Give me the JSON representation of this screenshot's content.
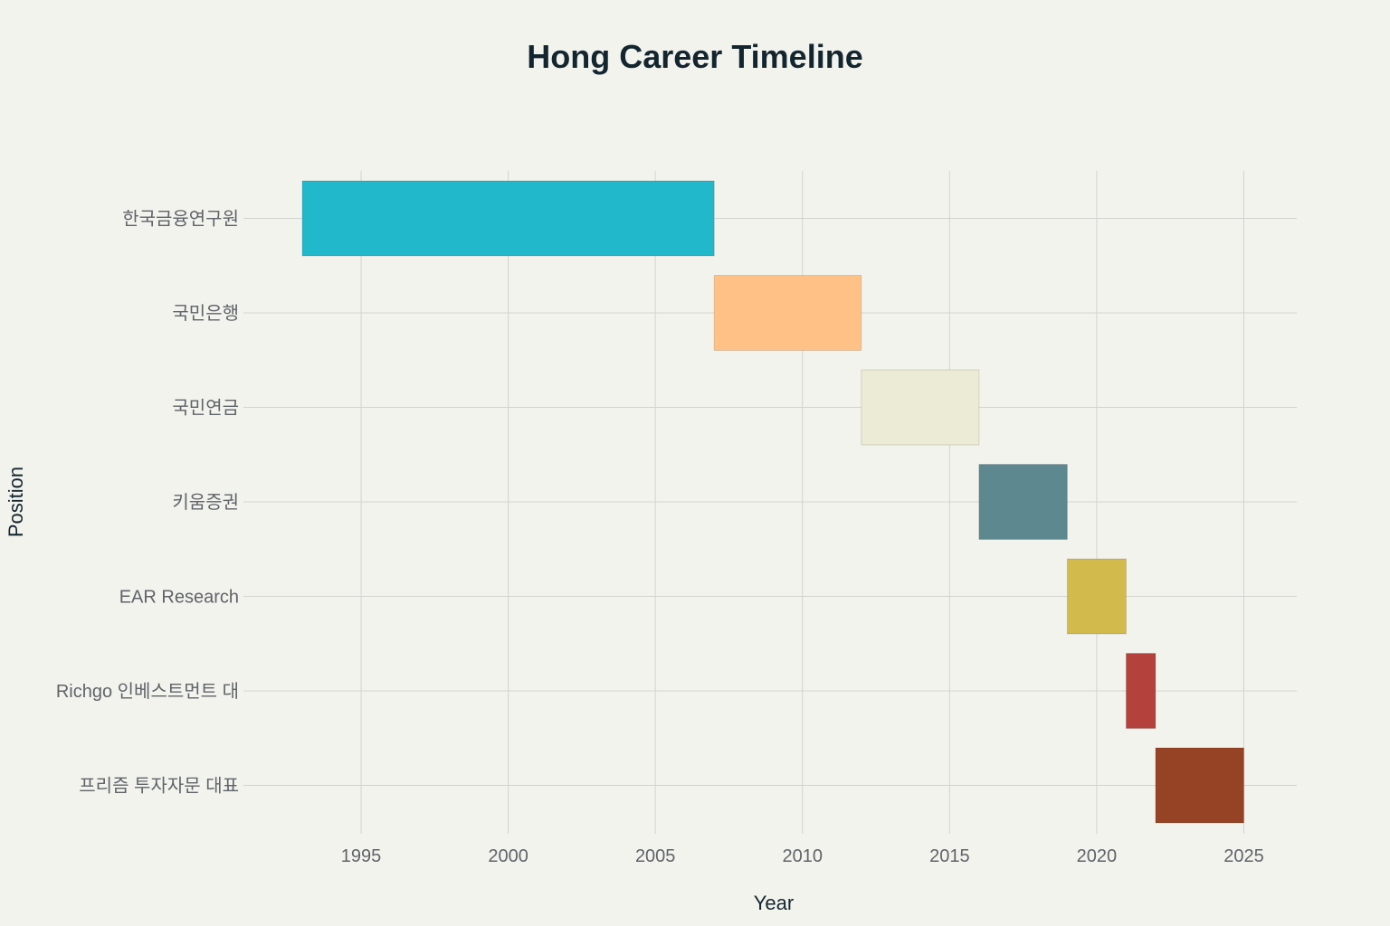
{
  "chart_data": {
    "type": "bar",
    "orientation": "horizontal-timeline",
    "title": "Hong Career Timeline",
    "xlabel": "Year",
    "ylabel": "Position",
    "xlim": [
      1991,
      2026.8
    ],
    "xticks": [
      1995,
      2000,
      2005,
      2010,
      2015,
      2020,
      2025
    ],
    "grid": true,
    "legend": "none",
    "categories": [
      "한국금융연구원",
      "국민은행",
      "국민연금",
      "키움증권",
      "EAR Research",
      "Richgo 인베스트먼트 대",
      "프리즘 투자자문 대표"
    ],
    "bars": [
      {
        "label": "한국금융연구원",
        "start": 1993,
        "end": 2007,
        "color": "#21b8cc"
      },
      {
        "label": "국민은행",
        "start": 2007,
        "end": 2012,
        "color": "#ffc185"
      },
      {
        "label": "국민연금",
        "start": 2012,
        "end": 2016,
        "color": "#ecebd5"
      },
      {
        "label": "키움증권",
        "start": 2016,
        "end": 2019,
        "color": "#5e8890"
      },
      {
        "label": "EAR Research",
        "start": 2019,
        "end": 2021,
        "color": "#d2ba4c"
      },
      {
        "label": "Richgo 인베스트먼트 대",
        "start": 2021,
        "end": 2022,
        "color": "#b4413c"
      },
      {
        "label": "프리즘 투자자문 대표",
        "start": 2022,
        "end": 2025,
        "color": "#964325"
      }
    ]
  }
}
